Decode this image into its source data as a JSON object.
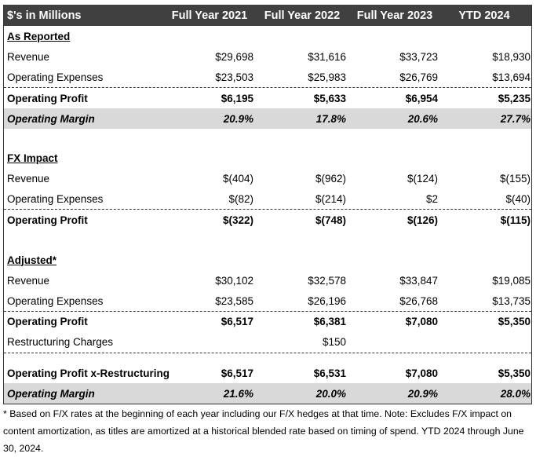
{
  "header": {
    "label": "$'s in Millions",
    "columns": [
      "Full Year 2021",
      "Full Year 2022",
      "Full Year 2023",
      "YTD 2024"
    ]
  },
  "rows": [
    {
      "type": "section",
      "label": "As Reported",
      "values": []
    },
    {
      "type": "normal",
      "label": "Revenue",
      "values": [
        "$29,698",
        "$31,616",
        "$33,723",
        "$18,930"
      ]
    },
    {
      "type": "normal",
      "label": "Operating Expenses",
      "values": [
        "$23,503",
        "$25,983",
        "$26,769",
        "$13,694"
      ]
    },
    {
      "type": "total",
      "label": "Operating Profit",
      "values": [
        "$6,195",
        "$5,633",
        "$6,954",
        "$5,235"
      ]
    },
    {
      "type": "margin",
      "label": "Operating Margin",
      "values": [
        "20.9%",
        "17.8%",
        "20.6%",
        "27.7%"
      ]
    },
    {
      "type": "blank",
      "label": "",
      "values": []
    },
    {
      "type": "section",
      "label": "FX Impact",
      "values": []
    },
    {
      "type": "normal",
      "label": "Revenue",
      "values": [
        "$(404)",
        "$(962)",
        "$(124)",
        "$(155)"
      ]
    },
    {
      "type": "normal",
      "label": "Operating Expenses",
      "values": [
        "$(82)",
        "$(214)",
        "$2",
        "$(40)"
      ]
    },
    {
      "type": "total",
      "label": "Operating Profit",
      "values": [
        "$(322)",
        "$(748)",
        "$(126)",
        "$(115)"
      ]
    },
    {
      "type": "blank",
      "label": "",
      "values": []
    },
    {
      "type": "section",
      "label": "Adjusted*",
      "values": []
    },
    {
      "type": "normal",
      "label": "Revenue",
      "values": [
        "$30,102",
        "$32,578",
        "$33,847",
        "$19,085"
      ]
    },
    {
      "type": "normal",
      "label": "Operating Expenses",
      "values": [
        "$23,585",
        "$26,196",
        "$26,768",
        "$13,735"
      ]
    },
    {
      "type": "total",
      "label": "Operating Profit",
      "values": [
        "$6,517",
        "$6,381",
        "$7,080",
        "$5,350"
      ]
    },
    {
      "type": "normal",
      "label": "Restructuring Charges",
      "values": [
        "",
        "$150",
        "",
        ""
      ]
    },
    {
      "type": "blank-dash",
      "label": "",
      "values": []
    },
    {
      "type": "bold",
      "label": "Operating Profit x-Restructuring",
      "values": [
        "$6,517",
        "$6,531",
        "$7,080",
        "$5,350"
      ]
    },
    {
      "type": "margin",
      "label": "Operating Margin",
      "values": [
        "21.6%",
        "20.0%",
        "20.9%",
        "28.0%"
      ]
    }
  ],
  "footnote": "* Based on F/X rates at the beginning of each year including our F/X hedges at that time. Note: Excludes F/X impact on content amortization, as titles are amortized at a historical blended rate based on timing of spend. YTD 2024 through June 30, 2024.",
  "colors": {
    "header_bg": "#404040",
    "margin_bg": "#d9d9d9"
  }
}
